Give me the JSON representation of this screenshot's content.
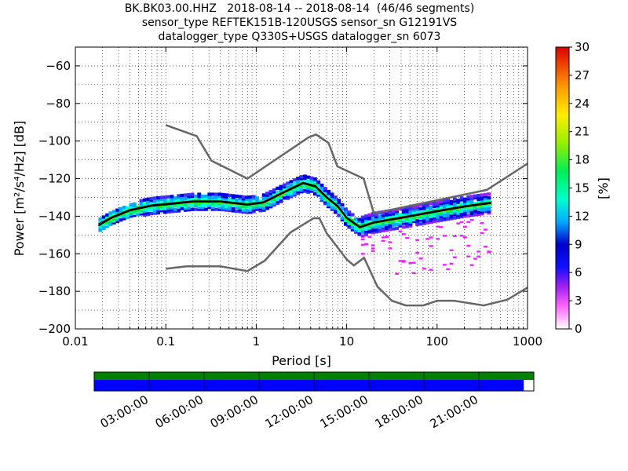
{
  "title": {
    "line1": "BK.BK03.00.HHZ   2018-08-14 -- 2018-08-14  (46/46 segments)",
    "line2": "sensor_type REFTEK151B-120USGS sensor_sn G12191VS",
    "line3": "datalogger_type Q330S+USGS datalogger_sn 6073"
  },
  "chart_data": {
    "type": "heatmap",
    "xlabel": "Period [s]",
    "ylabel": "Power [m²/s⁴/Hz] [dB]",
    "xscale": "log",
    "xlim": [
      0.01,
      1000
    ],
    "ylim": [
      -200,
      -50
    ],
    "x_ticks": [
      "0.01",
      "0.1",
      "1",
      "10",
      "100",
      "1000"
    ],
    "y_ticks": [
      "−60",
      "−80",
      "−100",
      "−120",
      "−140",
      "−160",
      "−180",
      "−200"
    ],
    "colorbar": {
      "label": "[%]",
      "ticks": [
        "0",
        "3",
        "6",
        "9",
        "12",
        "15",
        "18",
        "21",
        "24",
        "27",
        "30"
      ],
      "range": [
        0,
        30
      ]
    },
    "noise_models": [
      {
        "name": "NHNM",
        "points": [
          [
            0.1,
            -91.5
          ],
          [
            0.22,
            -97.4
          ],
          [
            0.32,
            -110.5
          ],
          [
            0.8,
            -120
          ],
          [
            3.8,
            -98
          ],
          [
            4.6,
            -96.5
          ],
          [
            6.3,
            -101
          ],
          [
            7.9,
            -113.5
          ],
          [
            15.4,
            -120
          ],
          [
            20,
            -138.5
          ],
          [
            354.8,
            -126
          ],
          [
            1000,
            -112
          ]
        ]
      },
      {
        "name": "NLNM",
        "points": [
          [
            0.1,
            -168
          ],
          [
            0.17,
            -166.7
          ],
          [
            0.4,
            -166.7
          ],
          [
            0.8,
            -169.2
          ],
          [
            1.24,
            -163.7
          ],
          [
            2.4,
            -148.6
          ],
          [
            4.3,
            -141.1
          ],
          [
            5,
            -141.1
          ],
          [
            6,
            -149
          ],
          [
            10,
            -163
          ],
          [
            12,
            -166.2
          ],
          [
            15.6,
            -162.1
          ],
          [
            21.9,
            -177.5
          ],
          [
            31.6,
            -185
          ],
          [
            45,
            -187.5
          ],
          [
            70,
            -187.5
          ],
          [
            101,
            -185
          ],
          [
            154,
            -185
          ],
          [
            328,
            -187.5
          ],
          [
            600,
            -184.4
          ],
          [
            1000,
            -178
          ]
        ]
      }
    ],
    "mean_psd": [
      [
        0.018,
        -145
      ],
      [
        0.025,
        -141
      ],
      [
        0.04,
        -137
      ],
      [
        0.07,
        -134.5
      ],
      [
        0.1,
        -133.8
      ],
      [
        0.2,
        -132.3
      ],
      [
        0.4,
        -132.3
      ],
      [
        0.8,
        -134
      ],
      [
        1.2,
        -132.8
      ],
      [
        2,
        -127.5
      ],
      [
        3.3,
        -122.5
      ],
      [
        4.5,
        -124.2
      ],
      [
        6,
        -130
      ],
      [
        8,
        -135
      ],
      [
        10,
        -141
      ],
      [
        14,
        -146
      ],
      [
        20,
        -143.5
      ],
      [
        40,
        -141
      ],
      [
        100,
        -137.5
      ],
      [
        200,
        -135
      ],
      [
        400,
        -133
      ]
    ],
    "mode_psd": [
      [
        0.018,
        -144
      ],
      [
        0.025,
        -140.5
      ],
      [
        0.04,
        -136.5
      ],
      [
        0.07,
        -134
      ],
      [
        0.1,
        -133.3
      ],
      [
        0.2,
        -131.8
      ],
      [
        0.4,
        -131.8
      ],
      [
        0.8,
        -133.5
      ],
      [
        1.2,
        -132.3
      ],
      [
        2,
        -127
      ],
      [
        3.3,
        -122
      ],
      [
        4.5,
        -123.7
      ],
      [
        6,
        -129.5
      ],
      [
        8,
        -134.5
      ],
      [
        10,
        -140.5
      ],
      [
        14,
        -145.5
      ],
      [
        20,
        -143
      ],
      [
        40,
        -140.5
      ],
      [
        100,
        -137
      ],
      [
        200,
        -134.5
      ],
      [
        400,
        -132.5
      ]
    ],
    "time_axis": {
      "ticks": [
        "03:00:00",
        "06:00:00",
        "09:00:00",
        "12:00:00",
        "15:00:00",
        "18:00:00",
        "21:00:00"
      ],
      "data_fraction": 0.977,
      "data_color": "#0000ff",
      "gaps_color": "#008000"
    }
  }
}
